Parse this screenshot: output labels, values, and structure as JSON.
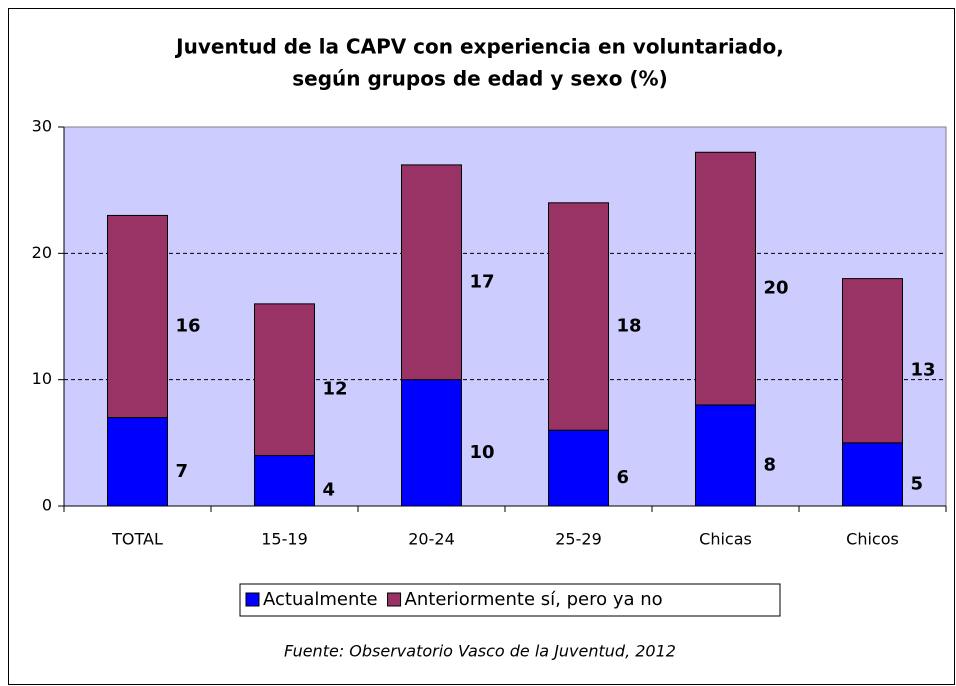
{
  "chart_data": {
    "type": "bar",
    "stacked": true,
    "title": [
      "Juventud de la CAPV con experiencia en voluntariado,",
      "según grupos de edad y sexo (%)"
    ],
    "categories": [
      "TOTAL",
      "15-19",
      "20-24",
      "25-29",
      "Chicas",
      "Chicos"
    ],
    "series": [
      {
        "name": "Actualmente",
        "color": "#0000ff",
        "values": [
          7,
          4,
          10,
          6,
          8,
          5
        ]
      },
      {
        "name": "Anteriormente sí, pero ya no",
        "color": "#993366",
        "values": [
          16,
          12,
          17,
          18,
          20,
          13
        ]
      }
    ],
    "ylim": [
      0,
      30
    ],
    "yticks": [
      0,
      10,
      20,
      30
    ],
    "grid": true,
    "legend": "bottom",
    "source": "Fuente: Observatorio Vasco de la Juventud, 2012"
  }
}
